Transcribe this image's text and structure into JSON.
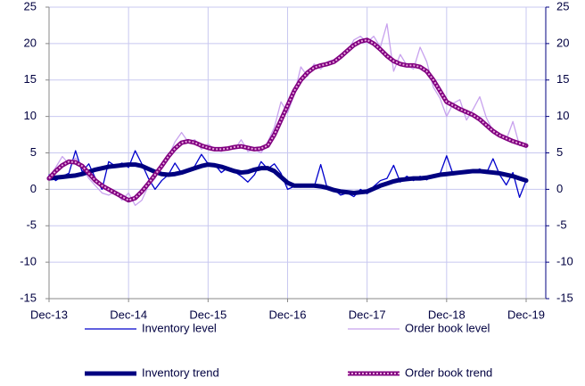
{
  "chart_data": {
    "type": "line",
    "categories": [
      "Dec-13",
      null,
      null,
      null,
      null,
      null,
      null,
      null,
      null,
      null,
      null,
      null,
      "Dec-14",
      null,
      null,
      null,
      null,
      null,
      null,
      null,
      null,
      null,
      null,
      null,
      "Dec-15",
      null,
      null,
      null,
      null,
      null,
      null,
      null,
      null,
      null,
      null,
      null,
      "Dec-16",
      null,
      null,
      null,
      null,
      null,
      null,
      null,
      null,
      null,
      null,
      null,
      "Dec-17",
      null,
      null,
      null,
      null,
      null,
      null,
      null,
      null,
      null,
      null,
      null,
      "Dec-18",
      null,
      null,
      null,
      null,
      null,
      null,
      null,
      null,
      null,
      null,
      null,
      "Dec-19"
    ],
    "series": [
      {
        "name": "Inventory level",
        "color": "#0000cc",
        "width": 1.3,
        "values": [
          2,
          1.2,
          1.8,
          2.2,
          5.3,
          2.4,
          3.5,
          1.5,
          0,
          3.8,
          3.2,
          3.6,
          3,
          5.3,
          3.5,
          1.5,
          0,
          1.2,
          2,
          3.6,
          2.2,
          2.5,
          3.2,
          4.8,
          3.5,
          3.4,
          2.3,
          3,
          2.4,
          1.8,
          1,
          2,
          3.8,
          2.8,
          3.5,
          2.2,
          0,
          0.4,
          0.3,
          0.5,
          0.3,
          3.4,
          0.1,
          0,
          -0.8,
          -0.5,
          -1,
          0,
          -0.6,
          0.4,
          1.2,
          1.5,
          3.3,
          1,
          1.8,
          1.2,
          1.8,
          1.3,
          2,
          2.1,
          4.6,
          2,
          2.2,
          2.6,
          2.4,
          2.8,
          2.2,
          4.2,
          2,
          0.6,
          2.3,
          -1.1,
          1.2
        ]
      },
      {
        "name": "Order book level",
        "color": "#c8a2ee",
        "width": 1.3,
        "values": [
          1.5,
          3,
          4.5,
          3.5,
          4.3,
          3,
          1.5,
          0.5,
          -0.5,
          -0.8,
          -0.3,
          -1.5,
          -0.5,
          -2.2,
          -1.5,
          0.5,
          1.5,
          3.5,
          4.5,
          6.5,
          7.8,
          6.5,
          6.8,
          5.5,
          6.2,
          5.5,
          5.2,
          5.8,
          5.5,
          6.8,
          5.2,
          5.5,
          5,
          6.5,
          8.5,
          12,
          10.5,
          13,
          16.8,
          15.5,
          17.2,
          16.5,
          17.5,
          17.8,
          18.5,
          18.8,
          20.5,
          21,
          20.2,
          21,
          19.5,
          22.7,
          16.2,
          18.5,
          17,
          16.5,
          19.5,
          17.5,
          14,
          12.5,
          10,
          11.8,
          12.3,
          9.5,
          11,
          12.7,
          9.8,
          8,
          7.5,
          6.8,
          9.3,
          6,
          6.2
        ]
      },
      {
        "name": "Inventory trend",
        "color": "#000080",
        "width": 5,
        "values": [
          1.5,
          1.6,
          1.7,
          1.8,
          1.9,
          2.1,
          2.4,
          2.7,
          2.9,
          3.1,
          3.2,
          3.3,
          3.4,
          3.4,
          3.2,
          2.8,
          2.4,
          2.1,
          2,
          2.1,
          2.3,
          2.6,
          2.9,
          3.2,
          3.4,
          3.3,
          3.1,
          2.8,
          2.5,
          2.3,
          2.4,
          2.7,
          2.9,
          2.9,
          2.5,
          1.7,
          0.9,
          0.5,
          0.5,
          0.5,
          0.5,
          0.4,
          0.2,
          -0.1,
          -0.3,
          -0.4,
          -0.5,
          -0.4,
          -0.3,
          0.1,
          0.5,
          0.8,
          1.1,
          1.3,
          1.4,
          1.5,
          1.5,
          1.6,
          1.8,
          2,
          2.1,
          2.2,
          2.3,
          2.4,
          2.5,
          2.5,
          2.4,
          2.3,
          2.2,
          2,
          1.8,
          1.5,
          1.2
        ]
      },
      {
        "name": "Order book trend",
        "color": "#800080",
        "overlay_color": "#e8a8dc",
        "width": 5,
        "values": [
          1.5,
          2.5,
          3.3,
          3.8,
          3.7,
          3.2,
          2.2,
          1.2,
          0.5,
          0,
          -0.5,
          -1,
          -1.5,
          -1.2,
          -0.3,
          0.8,
          2,
          3.2,
          4.5,
          5.6,
          6.4,
          6.6,
          6.4,
          6,
          5.7,
          5.5,
          5.5,
          5.6,
          5.8,
          5.9,
          5.7,
          5.5,
          5.6,
          6,
          7.5,
          9.5,
          11.5,
          13.5,
          15,
          16,
          16.7,
          17,
          17.2,
          17.5,
          18.2,
          19,
          19.8,
          20.3,
          20.5,
          20,
          19.2,
          18.3,
          17.6,
          17.2,
          17,
          17,
          16.8,
          16.2,
          15,
          13.5,
          12,
          11.5,
          11,
          10.6,
          10.2,
          9.6,
          8.8,
          8,
          7.4,
          7,
          6.6,
          6.3,
          6
        ]
      }
    ],
    "ylim": [
      -15,
      25
    ],
    "yticks": [
      -15,
      -10,
      -5,
      0,
      5,
      10,
      15,
      20,
      25
    ],
    "y2lim": [
      -15,
      25
    ],
    "y2ticks": [
      -15,
      -10,
      -5,
      0,
      5,
      10,
      15,
      20,
      25
    ],
    "grid": true,
    "grid_color": "#c8c8f0",
    "legend": "bottom"
  }
}
